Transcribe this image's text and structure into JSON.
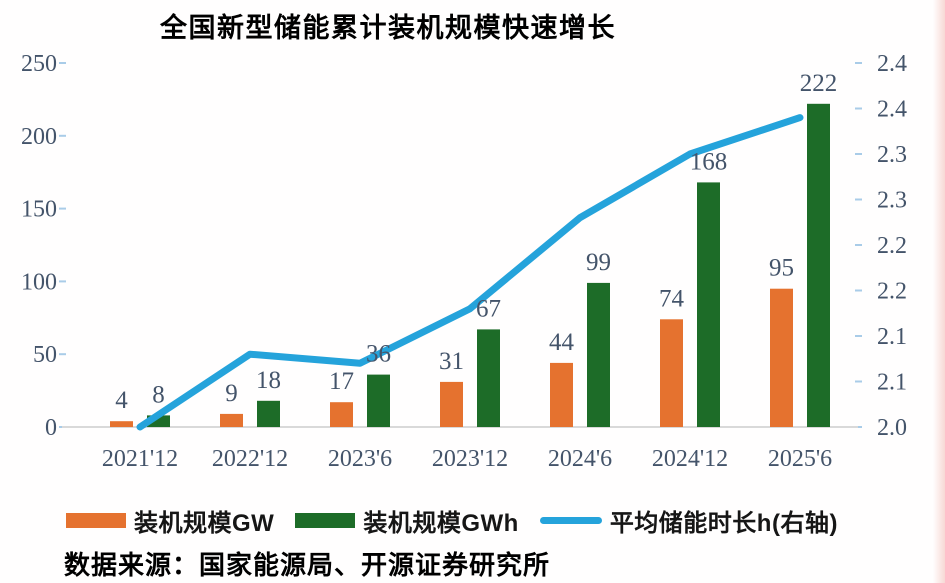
{
  "chart": {
    "title": "全国新型储能累计装机规模快速增长",
    "source": "数据来源：国家能源局、开源证券研究所"
  },
  "chart_data": {
    "type": "combo",
    "title": "全国新型储能累计装机规模快速增长",
    "categories": [
      "2021'12",
      "2022'12",
      "2023'6",
      "2023'12",
      "2024'6",
      "2024'12",
      "2025'6"
    ],
    "series": [
      {
        "name": "装机规模GW",
        "type": "bar",
        "axis": "left",
        "color": "#E5722F",
        "values": [
          4,
          9,
          17,
          31,
          44,
          74,
          95
        ]
      },
      {
        "name": "装机规模GWh",
        "type": "bar",
        "axis": "left",
        "color": "#1D6C28",
        "values": [
          8,
          18,
          36,
          67,
          99,
          168,
          222
        ]
      },
      {
        "name": "平均储能时长h(右轴)",
        "type": "line",
        "axis": "right",
        "color": "#25A3DB",
        "values": [
          2.0,
          2.08,
          2.07,
          2.13,
          2.23,
          2.3,
          2.34
        ]
      }
    ],
    "left_axis": {
      "min": 0,
      "max": 250,
      "ticks": [
        0,
        50,
        100,
        150,
        200,
        250
      ]
    },
    "right_axis": {
      "min": 2.0,
      "max": 2.4,
      "tick_labels": [
        "2.0",
        "2.1",
        "2.1",
        "2.2",
        "2.2",
        "2.3",
        "2.3",
        "2.4",
        "2.4"
      ]
    },
    "legend_position": "bottom",
    "grid": false,
    "axis_label_color": "#44546A",
    "bar_label_color": "#44546A",
    "tick_color": "#A9CCE8",
    "baseline_color": "#D9D9D9"
  }
}
